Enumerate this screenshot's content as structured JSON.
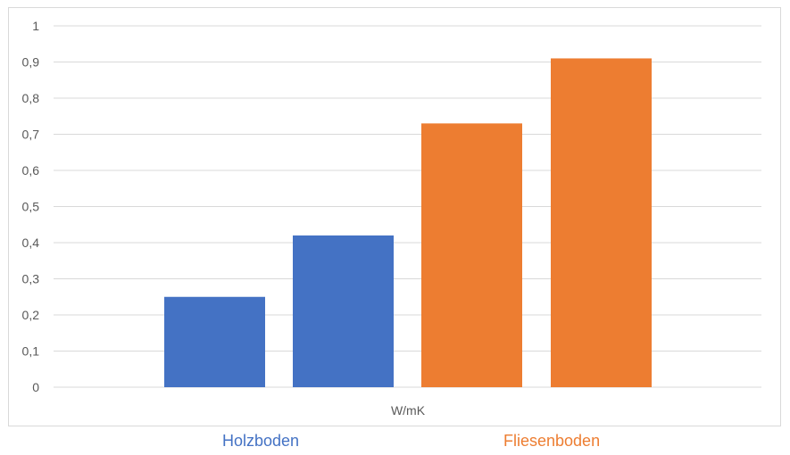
{
  "chart_data": {
    "type": "bar",
    "categories": [
      "W/mK"
    ],
    "xlabel": "W/mK",
    "ylabel": "",
    "ylim": [
      0,
      1
    ],
    "yticks": [
      0,
      0.1,
      0.2,
      0.3,
      0.4,
      0.5,
      0.6,
      0.7,
      0.8,
      0.9,
      1
    ],
    "ytick_labels": [
      "0",
      "0,1",
      "0,2",
      "0,3",
      "0,4",
      "0,5",
      "0,6",
      "0,7",
      "0,8",
      "0,9",
      "1"
    ],
    "grid": true,
    "bars": [
      {
        "group": "Holzboden",
        "value": 0.25,
        "color": "#4472c4"
      },
      {
        "group": "Holzboden",
        "value": 0.42,
        "color": "#4472c4"
      },
      {
        "group": "Fliesenboden",
        "value": 0.73,
        "color": "#ed7d31"
      },
      {
        "group": "Fliesenboden",
        "value": 0.91,
        "color": "#ed7d31"
      }
    ],
    "groups": [
      {
        "name": "Holzboden",
        "color": "#4472c4"
      },
      {
        "name": "Fliesenboden",
        "color": "#ed7d31"
      }
    ]
  }
}
